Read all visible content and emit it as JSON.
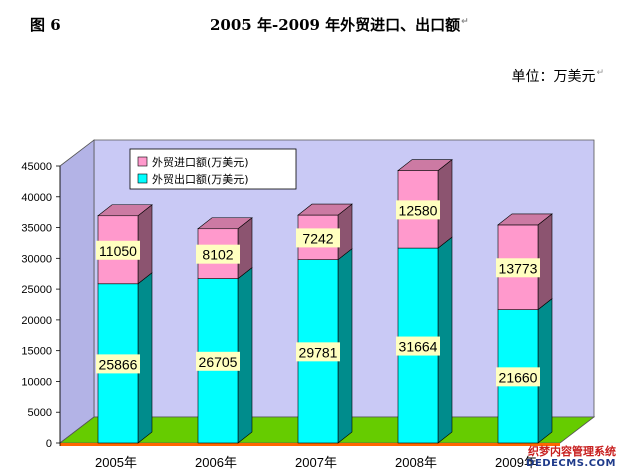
{
  "header": {
    "figure_label": "图 6",
    "title": "2005 年-2009 年外贸进口、出口额",
    "unit": "单位：万美元",
    "para_mark": "↵"
  },
  "chart_data": {
    "type": "bar",
    "stacked": true,
    "style": "3d-column",
    "categories": [
      "2005年",
      "2006年",
      "2007年",
      "2008年",
      "2009年"
    ],
    "series": [
      {
        "name": "外贸出口额(万美元)",
        "color": "#00ffff",
        "values": [
          25866,
          26705,
          29781,
          31664,
          21660
        ]
      },
      {
        "name": "外贸进口额(万美元)",
        "color": "#ff99cc",
        "values": [
          11050,
          8102,
          7242,
          12580,
          13773
        ]
      }
    ],
    "yticks": [
      0,
      5000,
      10000,
      15000,
      20000,
      25000,
      30000,
      35000,
      40000,
      45000
    ],
    "ylim": [
      0,
      45000
    ],
    "grid": false,
    "legend_position": "top-left",
    "colors": {
      "back_wall": "#c9c9f5",
      "floor": "#66cc00",
      "floor_front": "#ff6600",
      "label_box": "#ffffc0"
    }
  },
  "watermark": {
    "line1": "织梦内容管理系统",
    "line2": "DEDECMS.COM"
  }
}
